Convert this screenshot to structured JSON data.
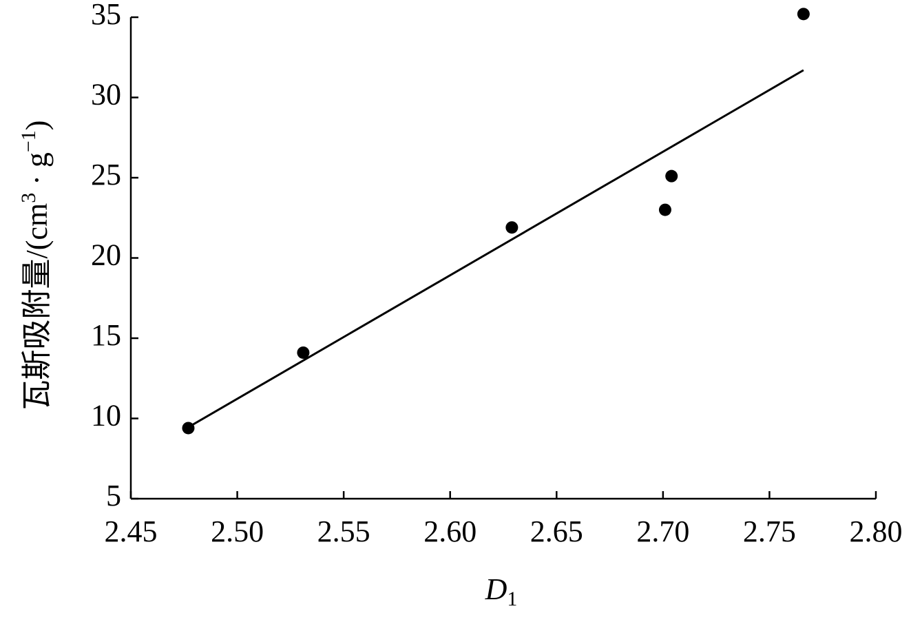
{
  "chart_data": {
    "type": "scatter",
    "x": [
      2.477,
      2.531,
      2.629,
      2.701,
      2.704,
      2.766
    ],
    "y": [
      9.4,
      14.1,
      21.9,
      23.0,
      25.1,
      35.2
    ],
    "color": "#000000",
    "fit_line": {
      "x": [
        2.475,
        2.766
      ],
      "y": [
        9.3,
        31.7
      ],
      "color": "#000000"
    },
    "xlabel": [
      "D",
      "1"
    ],
    "ylabel": [
      "瓦斯吸附量/(cm",
      "3",
      " · g",
      "−1",
      ")"
    ],
    "xlim": [
      2.45,
      2.8
    ],
    "xticks": [
      2.45,
      {
        "value": 2.5,
        "label": "2.50"
      },
      2.55,
      {
        "value": 2.6,
        "label": "2.60"
      },
      2.65,
      {
        "value": 2.7,
        "label": "2.70"
      },
      2.75,
      {
        "value": 2.8,
        "label": "2.80"
      }
    ],
    "ylim": [
      5,
      35
    ],
    "yticks": [
      5,
      10,
      15,
      20,
      25,
      30,
      35
    ]
  }
}
